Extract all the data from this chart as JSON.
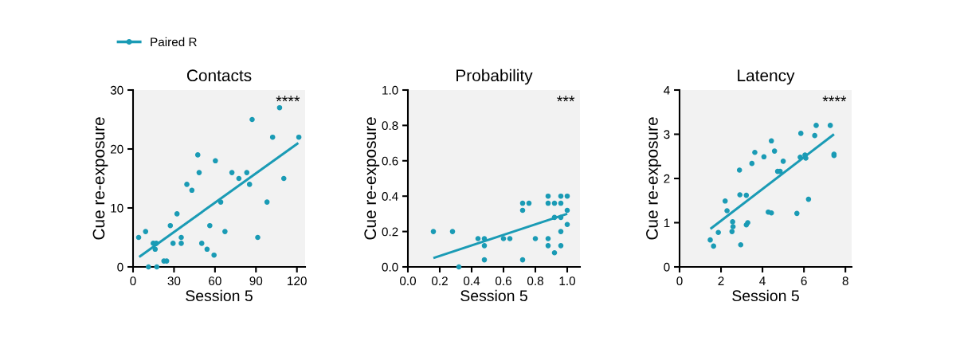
{
  "chart_data": [
    {
      "type": "scatter",
      "title": "Contacts",
      "xlabel": "Session 5",
      "ylabel": "Cue re-exposure",
      "xlim": [
        0,
        126
      ],
      "xticks": [
        0,
        30,
        60,
        90,
        120
      ],
      "ylim": [
        0,
        30
      ],
      "yticks": [
        0,
        10,
        20,
        30
      ],
      "grid": false,
      "legend": "top left",
      "annotations": [
        "****"
      ],
      "series": [
        {
          "name": "Paired R",
          "color": "#1a9bb5",
          "marker": "circle",
          "x": [
            4.1,
            9.2,
            11.3,
            14.8,
            17,
            16.2,
            17.4,
            22.6,
            24.6,
            27.3,
            29.3,
            32.2,
            35.3,
            35.3,
            39.4,
            43.1,
            47.4,
            48.4,
            50.3,
            54.2,
            56.2,
            59.3,
            60.3,
            64.2,
            67.3,
            72.4,
            77.5,
            83.3,
            85.3,
            87.2,
            91.3,
            98.1,
            102.2,
            107.3,
            110.4,
            121.4
          ],
          "values": [
            5,
            6,
            0,
            4,
            4,
            3,
            0,
            1,
            1,
            7,
            4,
            9,
            5,
            4,
            14,
            13,
            19,
            16,
            4,
            3,
            7,
            2,
            18,
            11,
            6,
            16,
            15,
            16,
            14,
            25,
            5,
            11,
            22,
            27,
            15,
            22
          ]
        },
        {
          "type": "line",
          "color": "#1a9bb5",
          "marker": "none",
          "x": [
            4.5,
            121
          ],
          "values": [
            1.7,
            21
          ]
        }
      ]
    },
    {
      "type": "scatter",
      "title": "Probability",
      "xlabel": "Session 5",
      "ylabel": "Cue re-exposure",
      "xlim": [
        0,
        1.08
      ],
      "xticks": [
        {
          "value": 0,
          "label": "0.0"
        },
        {
          "value": 0.2,
          "label": "0.2"
        },
        {
          "value": 0.4,
          "label": "0.4"
        },
        {
          "value": 0.6,
          "label": "0.6"
        },
        {
          "value": 0.8,
          "label": "0.8"
        },
        {
          "value": 1,
          "label": "1.0"
        }
      ],
      "ylim": [
        0,
        1
      ],
      "yticks": [
        {
          "value": 0,
          "label": "0.0"
        },
        {
          "value": 0.2,
          "label": "0.2"
        },
        {
          "value": 0.4,
          "label": "0.4"
        },
        {
          "value": 0.6,
          "label": "0.6"
        },
        {
          "value": 0.8,
          "label": "0.8"
        },
        {
          "value": 1,
          "label": "1.0"
        }
      ],
      "grid": false,
      "annotations": [
        "***"
      ],
      "series": [
        {
          "color": "#1a9bb5",
          "marker": "circle",
          "x": [
            0.16,
            0.28,
            0.32,
            0.44,
            0.48,
            0.48,
            0.48,
            0.6,
            0.64,
            0.72,
            0.76,
            0.72,
            0.72,
            0.8,
            0.88,
            0.88,
            0.92,
            0.96,
            0.96,
            1.0,
            1.0,
            0.92,
            0.96,
            1.0,
            0.96,
            0.88,
            0.88,
            0.96,
            0.92
          ],
          "values": [
            0.2,
            0.2,
            0.0,
            0.16,
            0.16,
            0.12,
            0.04,
            0.16,
            0.16,
            0.36,
            0.36,
            0.32,
            0.04,
            0.16,
            0.4,
            0.36,
            0.36,
            0.4,
            0.36,
            0.4,
            0.32,
            0.28,
            0.28,
            0.24,
            0.2,
            0.16,
            0.12,
            0.12,
            0.08
          ]
        },
        {
          "type": "line",
          "color": "#1a9bb5",
          "marker": "none",
          "x": [
            0.16,
            1.0
          ],
          "values": [
            0.05,
            0.3
          ]
        }
      ]
    },
    {
      "type": "scatter",
      "title": "Latency",
      "xlabel": "Session 5",
      "ylabel": "Cue re-exposure",
      "xlim": [
        0,
        8.3
      ],
      "xticks": [
        0,
        2,
        4,
        6,
        8
      ],
      "ylim": [
        0,
        4
      ],
      "yticks": [
        0,
        1,
        2,
        3,
        4
      ],
      "grid": false,
      "annotations": [
        "****"
      ],
      "series": [
        {
          "color": "#1a9bb5",
          "marker": "circle",
          "x": [
            1.48,
            1.64,
            1.87,
            2.2,
            2.29,
            2.53,
            2.58,
            2.56,
            2.89,
            2.91,
            2.95,
            3.22,
            3.22,
            3.29,
            3.49,
            3.63,
            4.07,
            4.28,
            4.43,
            4.43,
            4.58,
            4.73,
            4.85,
            5.0,
            5.66,
            5.82,
            5.85,
            6.05,
            6.09,
            6.22,
            6.52,
            6.59,
            7.27,
            7.45,
            7.45
          ],
          "values": [
            0.61,
            0.47,
            0.78,
            1.49,
            1.27,
            0.8,
            0.91,
            1.02,
            2.19,
            1.63,
            0.5,
            1.62,
            0.95,
            1.0,
            2.34,
            2.59,
            2.49,
            1.24,
            1.22,
            2.85,
            2.62,
            2.16,
            2.16,
            2.39,
            1.21,
            2.48,
            3.02,
            2.53,
            2.46,
            1.53,
            2.97,
            3.2,
            3.2,
            2.55,
            2.52
          ]
        },
        {
          "type": "line",
          "color": "#1a9bb5",
          "marker": "none",
          "x": [
            1.49,
            7.45
          ],
          "values": [
            0.86,
            3.0
          ]
        }
      ]
    }
  ]
}
